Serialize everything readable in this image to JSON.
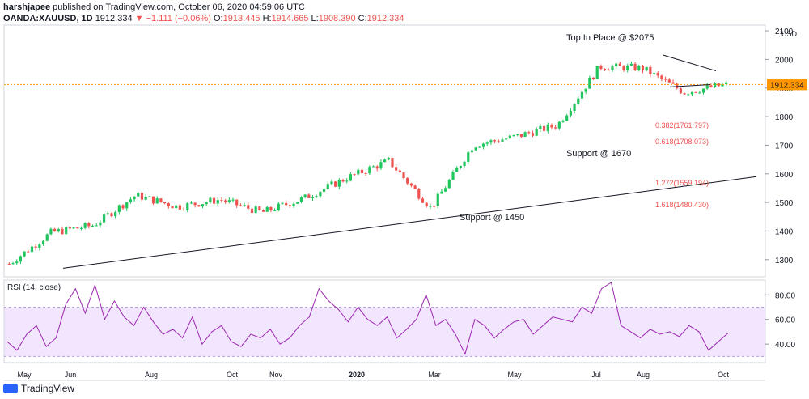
{
  "header": {
    "author": "harshjapee",
    "published": "published on TradingView.com, October 06, 2020 04:59:06 UTC",
    "symbol": "OANDA:XAUUSD, 1D",
    "last": "1912.334",
    "change": "−1.111 (−0.06%)",
    "o_label": "O:",
    "o_value": "1913.445",
    "h_label": "H:",
    "h_value": "1914.665",
    "l_label": "L:",
    "l_value": "1908.390",
    "c_label": "C:",
    "c_value": "1912.334"
  },
  "branding": {
    "logo_text": "TradingView"
  },
  "colors": {
    "up": "#26a69a",
    "up_bright": "#21c55d",
    "down": "#ef5350",
    "rsi": "#9c27b0",
    "rsi_band": "#e9d5ff",
    "price_line": "#ff9800"
  },
  "chart_data": {
    "type": "line",
    "price_axis": {
      "ticks": [
        1300,
        1400,
        1500,
        1600,
        1700,
        1800,
        1900,
        2000,
        2100
      ],
      "ylim": [
        1240,
        2120
      ],
      "currency": "USD",
      "last_price_label": "1912.334"
    },
    "time_axis": {
      "labels": [
        "May",
        "Jun",
        "Aug",
        "Oct",
        "Nov",
        "2020",
        "Mar",
        "May",
        "Jul",
        "Aug",
        "Oct"
      ]
    },
    "series": [
      {
        "name": "XAUUSD",
        "x": [
          "2019-05",
          "2019-06",
          "2019-07",
          "2019-08",
          "2019-09",
          "2019-10",
          "2019-11",
          "2019-12",
          "2020-01",
          "2020-02",
          "2020-03",
          "2020-04",
          "2020-05",
          "2020-06",
          "2020-07",
          "2020-08",
          "2020-09",
          "2020-10"
        ],
        "values": [
          1285,
          1395,
          1420,
          1525,
          1485,
          1510,
          1465,
          1515,
          1585,
          1645,
          1480,
          1700,
          1730,
          1770,
          1975,
          1970,
          1885,
          1912
        ]
      }
    ],
    "annotations": [
      {
        "text": "Top In Place @ $2075"
      },
      {
        "text": "Support @ 1670"
      },
      {
        "text": "Support @ 1450"
      },
      {
        "text": "0.382(1761.797)",
        "y": 1761.797
      },
      {
        "text": "0.618(1708.073)",
        "y": 1708.073
      },
      {
        "text": "1.272(1559.194)",
        "y": 1559.194
      },
      {
        "text": "1.618(1480.430)",
        "y": 1480.43
      }
    ],
    "rsi": {
      "title": "RSI (14, close)",
      "ticks": [
        40,
        60,
        80
      ],
      "band": [
        30,
        70
      ],
      "ylim": [
        25,
        92
      ],
      "values": [
        42,
        35,
        48,
        55,
        38,
        45,
        72,
        85,
        65,
        88,
        60,
        75,
        62,
        55,
        70,
        58,
        48,
        52,
        45,
        62,
        40,
        50,
        55,
        42,
        38,
        48,
        45,
        52,
        40,
        45,
        55,
        62,
        85,
        75,
        68,
        58,
        70,
        60,
        55,
        62,
        45,
        52,
        60,
        80,
        55,
        60,
        48,
        32,
        60,
        55,
        45,
        52,
        58,
        60,
        48,
        55,
        62,
        60,
        58,
        70,
        65,
        85,
        90,
        55,
        50,
        45,
        52,
        48,
        50,
        46,
        55,
        50,
        35,
        42,
        49
      ]
    }
  }
}
